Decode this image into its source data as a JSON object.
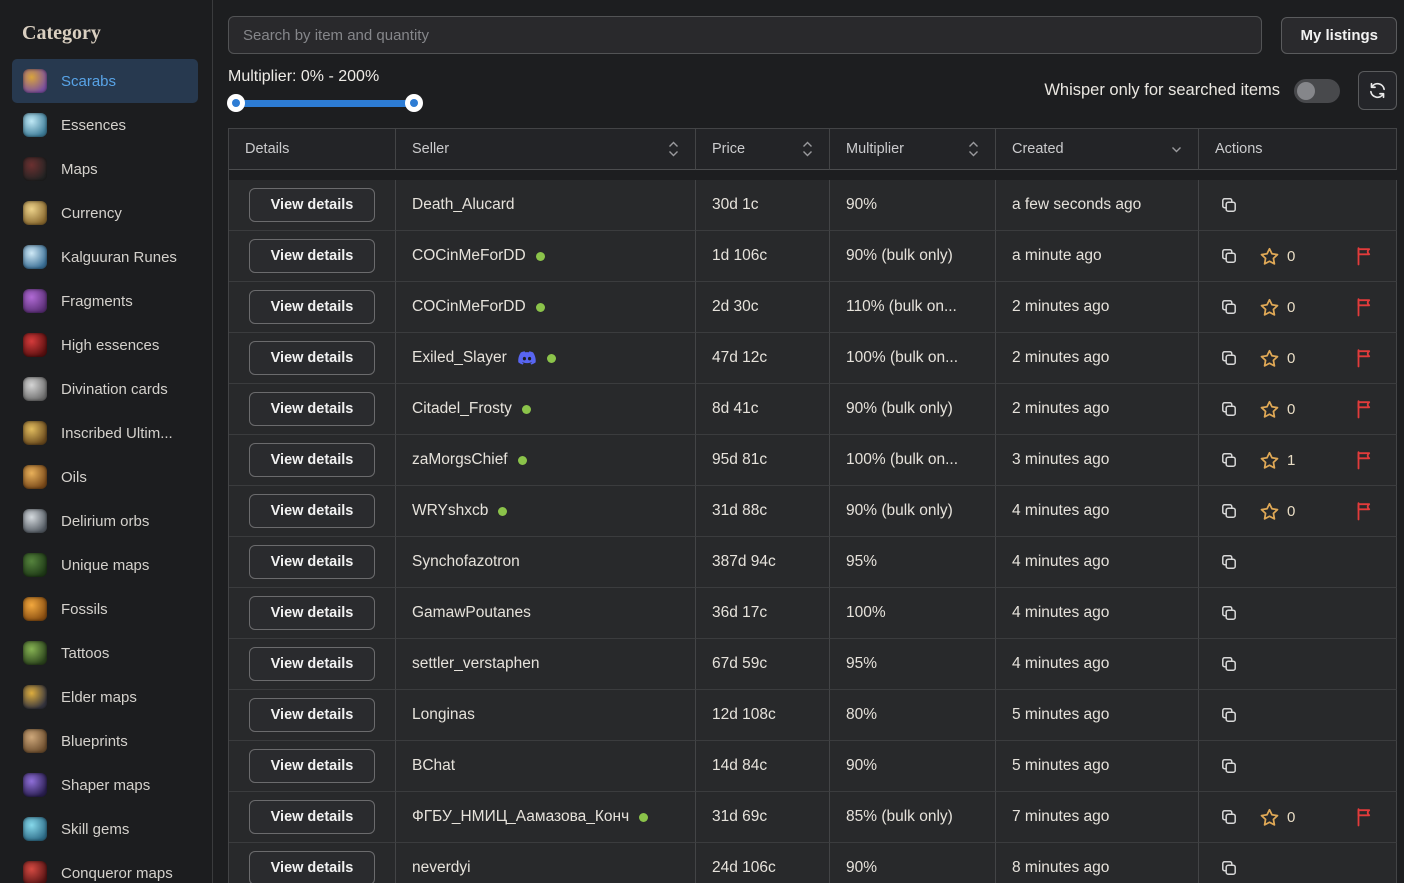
{
  "colors": {
    "accent_blue": "#58a3e6",
    "selected_bg": "#27394f",
    "slider_blue": "#2d7cd4",
    "online_green": "#8bc34a",
    "star_gold": "#dfa856",
    "flag_red": "#e23b3b",
    "discord_blurple": "#5865F2"
  },
  "sidebar": {
    "title": "Category",
    "items": [
      {
        "label": "Scarabs",
        "selected": true,
        "icon": "scarab-icon",
        "c1": "#d9a43c",
        "c2": "#7a4fa0"
      },
      {
        "label": "Essences",
        "selected": false,
        "icon": "essence-icon",
        "c1": "#bfe8f5",
        "c2": "#3e7d99"
      },
      {
        "label": "Maps",
        "selected": false,
        "icon": "map-icon",
        "c1": "#6b3030",
        "c2": "#232323"
      },
      {
        "label": "Currency",
        "selected": false,
        "icon": "currency-icon",
        "c1": "#ecd28a",
        "c2": "#8a6a30"
      },
      {
        "label": "Kalguuran Runes",
        "selected": false,
        "icon": "rune-icon",
        "c1": "#cfe9f6",
        "c2": "#3a6f96"
      },
      {
        "label": "Fragments",
        "selected": false,
        "icon": "fragment-icon",
        "c1": "#b06ad4",
        "c2": "#5b2f77"
      },
      {
        "label": "High essences",
        "selected": false,
        "icon": "high-essence-icon",
        "c1": "#d43b3b",
        "c2": "#5a1010"
      },
      {
        "label": "Divination cards",
        "selected": false,
        "icon": "divination-card-icon",
        "c1": "#d4d4d4",
        "c2": "#6e6e6e"
      },
      {
        "label": "Inscribed Ultim...",
        "selected": false,
        "icon": "inscribed-ultimatum-icon",
        "c1": "#e0bb5e",
        "c2": "#6b4b1e"
      },
      {
        "label": "Oils",
        "selected": false,
        "icon": "oil-icon",
        "c1": "#e8b05a",
        "c2": "#7a4a1a"
      },
      {
        "label": "Delirium orbs",
        "selected": false,
        "icon": "delirium-orb-icon",
        "c1": "#d4d9dd",
        "c2": "#545b63"
      },
      {
        "label": "Unique maps",
        "selected": false,
        "icon": "unique-map-icon",
        "c1": "#55833d",
        "c2": "#1f3a17"
      },
      {
        "label": "Fossils",
        "selected": false,
        "icon": "fossil-icon",
        "c1": "#f2a83e",
        "c2": "#8a4f12"
      },
      {
        "label": "Tattoos",
        "selected": false,
        "icon": "tattoo-icon",
        "c1": "#86b253",
        "c2": "#2c441d"
      },
      {
        "label": "Elder maps",
        "selected": false,
        "icon": "elder-map-icon",
        "c1": "#ddad3e",
        "c2": "#34343e"
      },
      {
        "label": "Blueprints",
        "selected": false,
        "icon": "blueprint-icon",
        "c1": "#cda77a",
        "c2": "#6e4f2f"
      },
      {
        "label": "Shaper maps",
        "selected": false,
        "icon": "shaper-map-icon",
        "c1": "#8f6fd8",
        "c2": "#2a1f50"
      },
      {
        "label": "Skill gems",
        "selected": false,
        "icon": "skill-gem-icon",
        "c1": "#86d8ea",
        "c2": "#2f6e8a"
      },
      {
        "label": "Conqueror maps",
        "selected": false,
        "icon": "conqueror-map-icon",
        "c1": "#d44a42",
        "c2": "#571414"
      }
    ]
  },
  "topbar": {
    "search_placeholder": "Search by item and quantity",
    "my_listings_label": "My listings"
  },
  "filters": {
    "multiplier_label": "Multiplier: 0% - 200%",
    "multiplier_min": "0%",
    "multiplier_max": "200%",
    "whisper_label": "Whisper only for searched items",
    "whisper_toggle_on": false
  },
  "table": {
    "headers": [
      {
        "label": "Details",
        "sort": "none"
      },
      {
        "label": "Seller",
        "sort": "both"
      },
      {
        "label": "Price",
        "sort": "both"
      },
      {
        "label": "Multiplier",
        "sort": "both"
      },
      {
        "label": "Created",
        "sort": "down"
      },
      {
        "label": "Actions",
        "sort": "none"
      }
    ],
    "view_details_label": "View details",
    "rows": [
      {
        "seller": "Death_Alucard",
        "online": false,
        "discord": false,
        "price": "30d 1c",
        "multiplier": "90%",
        "created": "a few seconds ago",
        "star_count": null,
        "flag": false
      },
      {
        "seller": "COCinMeForDD",
        "online": true,
        "discord": false,
        "price": "1d 106c",
        "multiplier": "90% (bulk only)",
        "created": "a minute ago",
        "star_count": 0,
        "flag": true
      },
      {
        "seller": "COCinMeForDD",
        "online": true,
        "discord": false,
        "price": "2d 30c",
        "multiplier": "110% (bulk on...",
        "created": "2 minutes ago",
        "star_count": 0,
        "flag": true
      },
      {
        "seller": "Exiled_Slayer",
        "online": true,
        "discord": true,
        "price": "47d 12c",
        "multiplier": "100% (bulk on...",
        "created": "2 minutes ago",
        "star_count": 0,
        "flag": true
      },
      {
        "seller": "Citadel_Frosty",
        "online": true,
        "discord": false,
        "price": "8d 41c",
        "multiplier": "90% (bulk only)",
        "created": "2 minutes ago",
        "star_count": 0,
        "flag": true
      },
      {
        "seller": "zaMorgsChief",
        "online": true,
        "discord": false,
        "price": "95d 81c",
        "multiplier": "100% (bulk on...",
        "created": "3 minutes ago",
        "star_count": 1,
        "flag": true
      },
      {
        "seller": "WRYshxcb",
        "online": true,
        "discord": false,
        "price": "31d 88c",
        "multiplier": "90% (bulk only)",
        "created": "4 minutes ago",
        "star_count": 0,
        "flag": true
      },
      {
        "seller": "Synchofazotron",
        "online": false,
        "discord": false,
        "price": "387d 94c",
        "multiplier": "95%",
        "created": "4 minutes ago",
        "star_count": null,
        "flag": false
      },
      {
        "seller": "GamawPoutanes",
        "online": false,
        "discord": false,
        "price": "36d 17c",
        "multiplier": "100%",
        "created": "4 minutes ago",
        "star_count": null,
        "flag": false
      },
      {
        "seller": "settler_verstaphen",
        "online": false,
        "discord": false,
        "price": "67d 59c",
        "multiplier": "95%",
        "created": "4 minutes ago",
        "star_count": null,
        "flag": false
      },
      {
        "seller": "Longinas",
        "online": false,
        "discord": false,
        "price": "12d 108c",
        "multiplier": "80%",
        "created": "5 minutes ago",
        "star_count": null,
        "flag": false
      },
      {
        "seller": "BChat",
        "online": false,
        "discord": false,
        "price": "14d 84c",
        "multiplier": "90%",
        "created": "5 minutes ago",
        "star_count": null,
        "flag": false
      },
      {
        "seller": "ФГБУ_НМИЦ_Аамазова_Конч",
        "online": true,
        "discord": false,
        "price": "31d 69c",
        "multiplier": "85% (bulk only)",
        "created": "7 minutes ago",
        "star_count": 0,
        "flag": true
      },
      {
        "seller": "neverdyi",
        "online": false,
        "discord": false,
        "price": "24d 106c",
        "multiplier": "90%",
        "created": "8 minutes ago",
        "star_count": null,
        "flag": false
      }
    ]
  }
}
